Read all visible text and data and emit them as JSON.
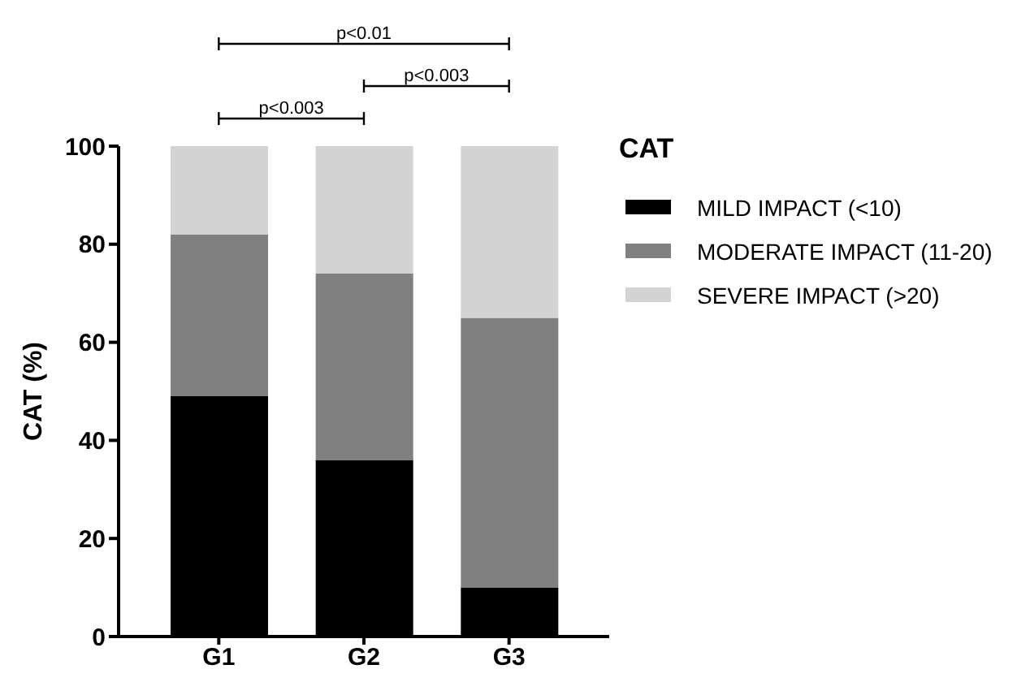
{
  "chart_data": {
    "type": "bar",
    "stacked": true,
    "ylabel": "CAT  (%)",
    "legend_title": "CAT",
    "legend": "right",
    "categories": [
      "G1",
      "G2",
      "G3"
    ],
    "series": [
      {
        "name": "MILD IMPACT (<10)",
        "color": "#000000",
        "values": [
          49,
          36,
          10
        ]
      },
      {
        "name": "MODERATE IMPACT (11-20)",
        "color": "#808080",
        "values": [
          33,
          38,
          55
        ]
      },
      {
        "name": "SEVERE IMPACT (>20)",
        "color": "#d3d3d3",
        "values": [
          18,
          26,
          35
        ]
      }
    ],
    "ylim": [
      0,
      100
    ],
    "yticks": [
      0,
      20,
      40,
      60,
      80,
      100
    ],
    "grid": false,
    "annotations": [
      "p<0.01",
      "p<0.003",
      "p<0.003"
    ]
  }
}
